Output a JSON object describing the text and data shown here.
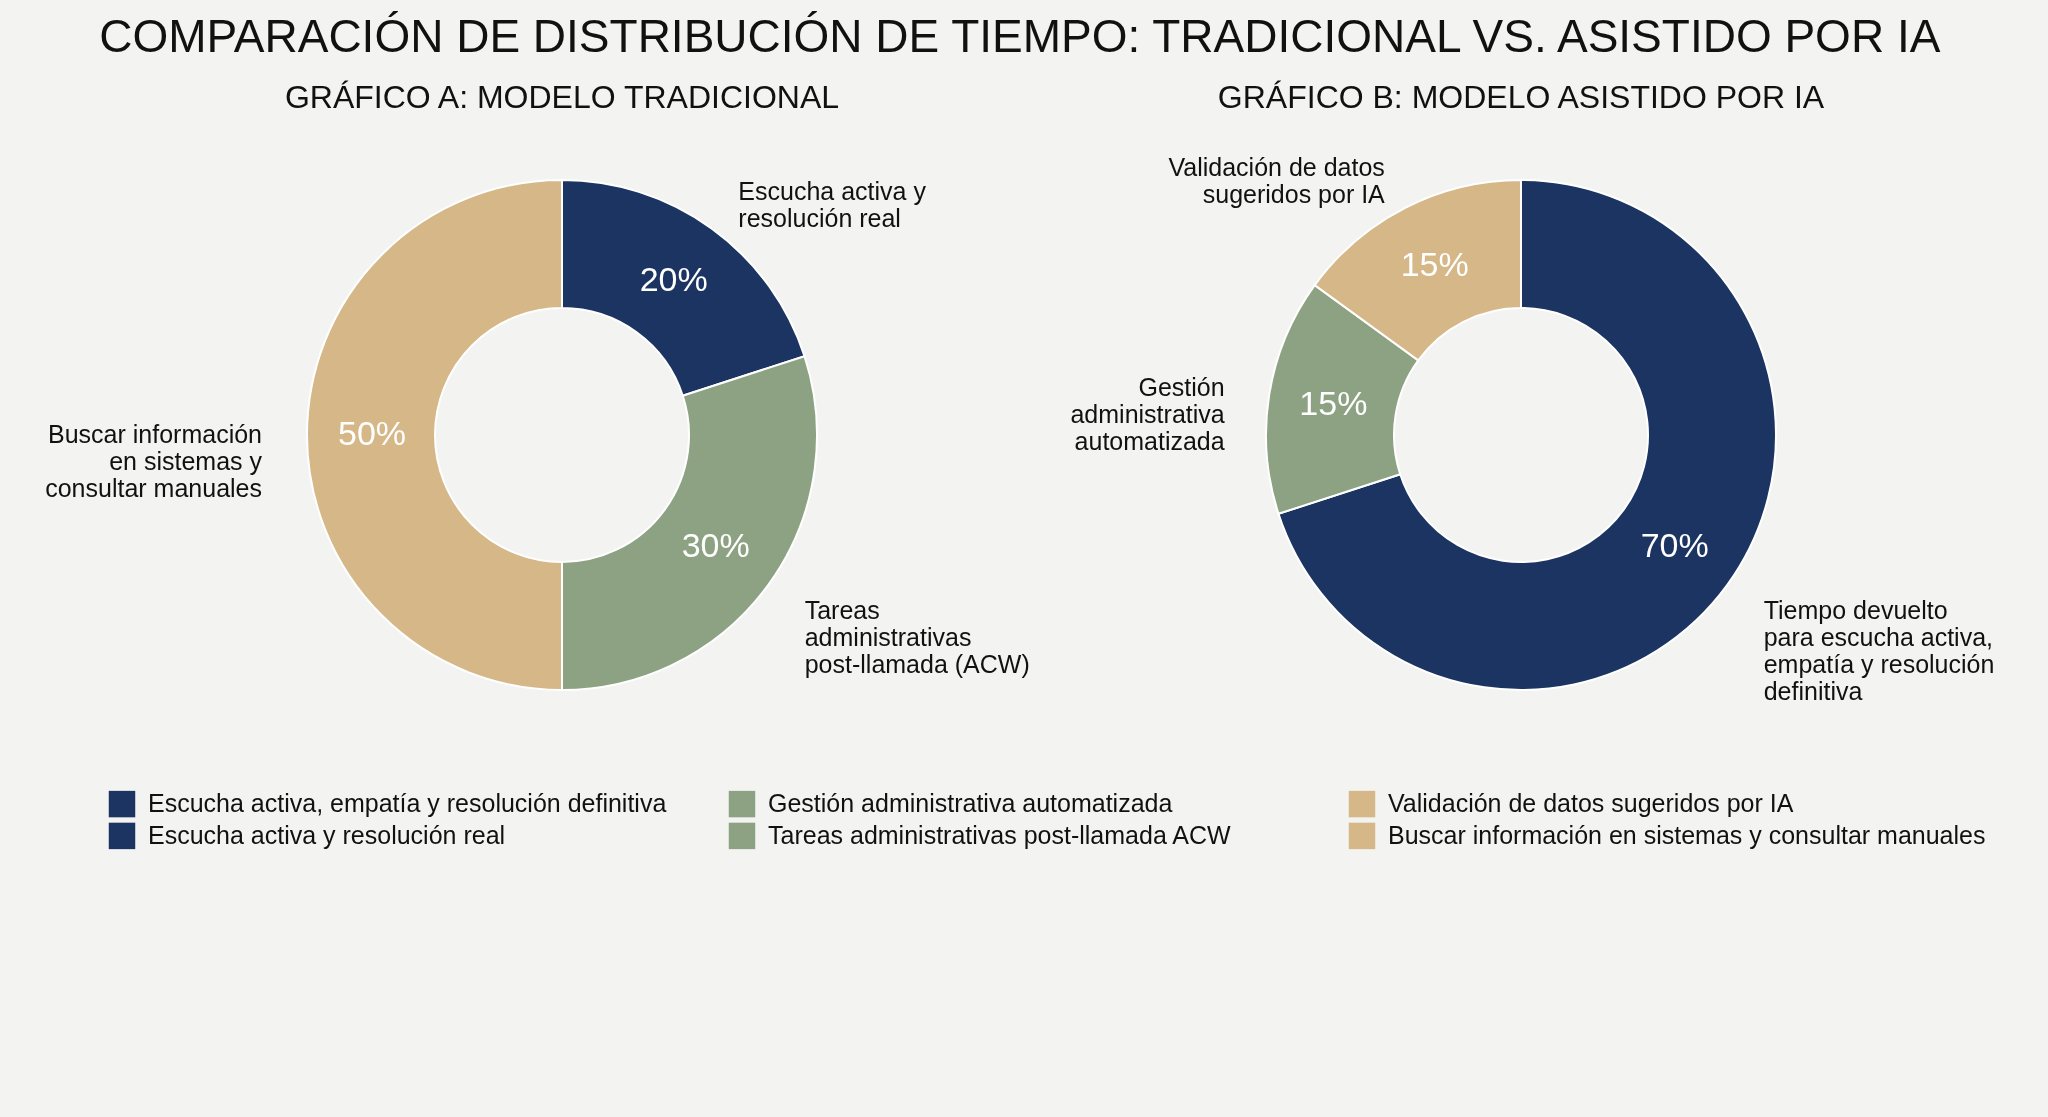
{
  "chart_data": [
    {
      "type": "donut",
      "title": "COMPARACIÓN DE DISTRIBUCIÓN DE TIEMPO:\nTRADICIONAL VS. ASISTIDO POR IA",
      "subtitle": "GRÁFICO A: MODELO TRADICIONAL",
      "categories": [
        "Escucha activa y\nresolución real",
        "Tareas\nadministrativas\npost-llamada (ACW)",
        "Buscar información\nen sistemas y\nconsultar manuales"
      ],
      "values": [
        20,
        30,
        50
      ],
      "value_labels": [
        "20%",
        "30%",
        "50%"
      ],
      "colors": [
        "#1c3461",
        "#8da283",
        "#d6b787"
      ]
    },
    {
      "type": "donut",
      "title": "GRÁFICO B: MODELO ASISTIDO POR IA",
      "categories": [
        "Tiempo devuelto\npara escucha activa,\nempatía y resolución\ndefinitiva",
        "Gestión\nadministrativa\nautomatizada",
        "Validación de datos\nsugeridos por IA"
      ],
      "values": [
        70,
        15,
        15
      ],
      "value_labels": [
        "70%",
        "15%",
        "15%"
      ],
      "colors": [
        "#1c3461",
        "#8da283",
        "#d6b787"
      ]
    },
    {
      "type": "other",
      "categories": [
        "Escucha activa, empatía y resolución definitiva",
        "Gestión administrativa automatizada",
        "Validación de datos sugeridos por IA",
        "Escucha activa y resolución real",
        "Tareas administrativas post-llamada ACW",
        "Buscar información en sistemas y consultar manuales"
      ],
      "colors": [
        "#1c3461",
        "#8da283",
        "#d6b787",
        "#1c3461",
        "#8da283",
        "#d6b787"
      ]
    }
  ]
}
